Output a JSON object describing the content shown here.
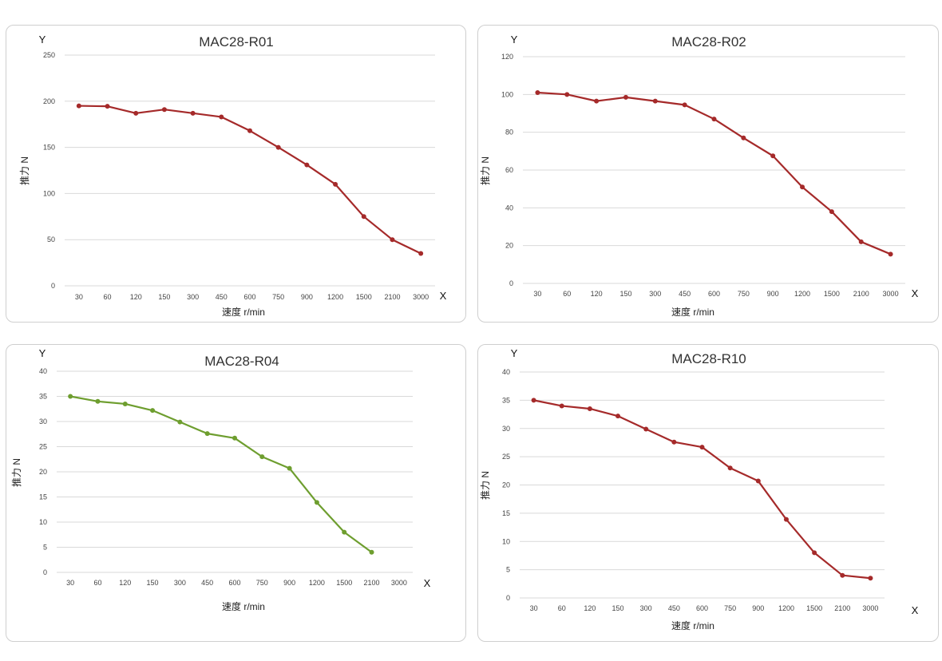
{
  "chart_data": [
    {
      "type": "line",
      "title": "MAC28-R01",
      "xlabel": "速度 r/min",
      "ylabel": "推力 N",
      "y_axis_letter": "Y",
      "x_axis_letter": "X",
      "categories": [
        "30",
        "60",
        "120",
        "150",
        "300",
        "450",
        "600",
        "750",
        "900",
        "1200",
        "1500",
        "2100",
        "3000"
      ],
      "ylim": [
        0,
        250
      ],
      "yticks": [
        0,
        50,
        100,
        150,
        200,
        250
      ],
      "grid": true,
      "color": "#a52a2a",
      "series": [
        {
          "values": [
            195,
            194.5,
            187,
            191,
            187,
            183,
            168,
            150,
            131,
            110,
            75,
            50,
            35
          ]
        }
      ]
    },
    {
      "type": "line",
      "title": "MAC28-R02",
      "xlabel": "速度 r/min",
      "ylabel": "推力 N",
      "y_axis_letter": "Y",
      "x_axis_letter": "X",
      "categories": [
        "30",
        "60",
        "120",
        "150",
        "300",
        "450",
        "600",
        "750",
        "900",
        "1200",
        "1500",
        "2100",
        "3000"
      ],
      "ylim": [
        0,
        120
      ],
      "yticks": [
        0,
        20,
        40,
        60,
        80,
        100,
        120
      ],
      "grid": true,
      "color": "#a52a2a",
      "series": [
        {
          "values": [
            101,
            100,
            96.5,
            98.5,
            96.5,
            94.5,
            87,
            77,
            67.5,
            51,
            38,
            22,
            15.5
          ]
        }
      ]
    },
    {
      "type": "line",
      "title": "MAC28-R04",
      "xlabel": "速度 r/min",
      "ylabel": "推力 N",
      "y_axis_letter": "Y",
      "x_axis_letter": "X",
      "categories": [
        "30",
        "60",
        "120",
        "150",
        "300",
        "450",
        "600",
        "750",
        "900",
        "1200",
        "1500",
        "2100",
        "3000"
      ],
      "ylim": [
        0,
        40
      ],
      "yticks": [
        0,
        5,
        10,
        15,
        20,
        25,
        30,
        35,
        40
      ],
      "grid": true,
      "color": "#6e9e2f",
      "series": [
        {
          "values": [
            35,
            34,
            33.5,
            32.2,
            29.9,
            27.6,
            26.7,
            23,
            20.7,
            13.9,
            8,
            4,
            null
          ]
        }
      ]
    },
    {
      "type": "line",
      "title": "MAC28-R10",
      "xlabel": "速度 r/min",
      "ylabel": "推力 N",
      "y_axis_letter": "Y",
      "x_axis_letter": "X",
      "categories": [
        "30",
        "60",
        "120",
        "150",
        "300",
        "450",
        "600",
        "750",
        "900",
        "1200",
        "1500",
        "2100",
        "3000"
      ],
      "ylim": [
        0,
        40
      ],
      "yticks": [
        0,
        5,
        10,
        15,
        20,
        25,
        30,
        35,
        40
      ],
      "grid": true,
      "color": "#a52a2a",
      "series": [
        {
          "values": [
            35,
            34,
            33.5,
            32.2,
            29.9,
            27.6,
            26.7,
            23,
            20.7,
            13.9,
            8,
            4,
            3.5
          ]
        }
      ]
    }
  ]
}
